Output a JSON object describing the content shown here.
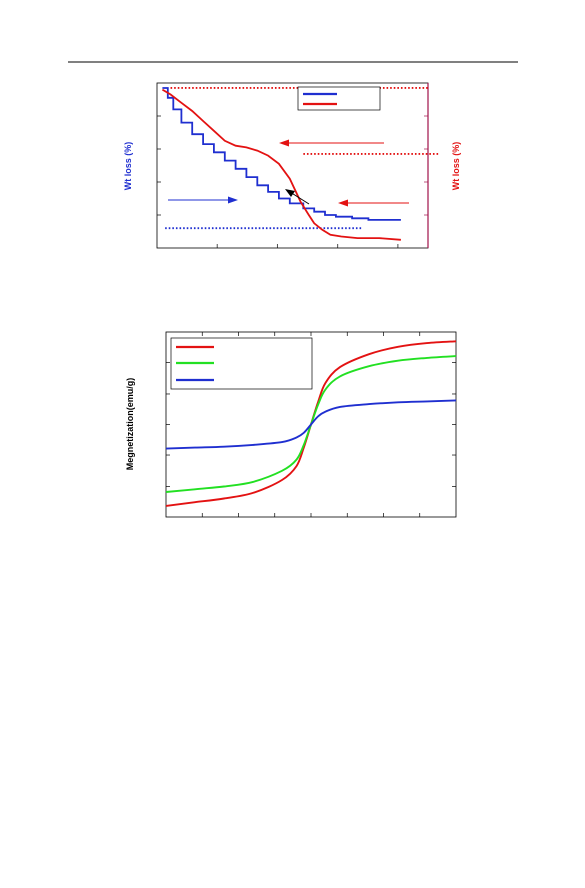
{
  "colors": {
    "blue": "#1f2fd0",
    "red": "#e31212",
    "green": "#22e022",
    "maroon": "#a0124a",
    "black": "#000000"
  },
  "chart_data": [
    {
      "type": "line",
      "title": "",
      "ylabel_left": "Wt loss (%)",
      "ylabel_right": "Wt loss (%)",
      "xlim": [
        0,
        1
      ],
      "ylim": [
        0,
        1
      ],
      "grid": false,
      "legend_position": "top-right",
      "series": [
        {
          "color": "blue",
          "x": [
            0.02,
            0.04,
            0.06,
            0.09,
            0.13,
            0.17,
            0.21,
            0.25,
            0.29,
            0.33,
            0.37,
            0.41,
            0.45,
            0.49,
            0.54,
            0.58,
            0.62,
            0.66,
            0.72,
            0.78,
            0.85,
            0.9
          ],
          "y": [
            0.03,
            0.09,
            0.16,
            0.24,
            0.31,
            0.37,
            0.42,
            0.47,
            0.52,
            0.57,
            0.62,
            0.66,
            0.7,
            0.73,
            0.76,
            0.78,
            0.8,
            0.81,
            0.82,
            0.83,
            0.83,
            0.83
          ]
        },
        {
          "color": "red",
          "x": [
            0.02,
            0.05,
            0.09,
            0.13,
            0.17,
            0.21,
            0.25,
            0.29,
            0.33,
            0.37,
            0.41,
            0.45,
            0.49,
            0.53,
            0.56,
            0.58,
            0.61,
            0.64,
            0.68,
            0.74,
            0.82,
            0.9
          ],
          "y": [
            0.04,
            0.07,
            0.12,
            0.17,
            0.23,
            0.29,
            0.35,
            0.38,
            0.39,
            0.41,
            0.44,
            0.49,
            0.58,
            0.72,
            0.8,
            0.85,
            0.89,
            0.92,
            0.93,
            0.94,
            0.94,
            0.95
          ]
        }
      ],
      "reference_lines": [
        {
          "color": "red",
          "y": 0.03,
          "x": [
            0.05,
            1.0
          ]
        },
        {
          "color": "red",
          "y": 0.43,
          "x": [
            0.54,
            1.04
          ]
        },
        {
          "color": "blue",
          "y": 0.88,
          "x": [
            0.03,
            0.76
          ]
        }
      ]
    },
    {
      "type": "line",
      "title": "",
      "ylabel": "Megnetization(emu/g)",
      "xlim": [
        -1,
        1
      ],
      "ylim": [
        -1,
        1
      ],
      "grid": false,
      "legend_position": "top-left",
      "series": [
        {
          "color": "red",
          "x": [
            -1,
            -0.8,
            -0.6,
            -0.4,
            -0.2,
            -0.1,
            -0.05,
            0,
            0.05,
            0.1,
            0.2,
            0.4,
            0.6,
            0.8,
            1
          ],
          "y": [
            -0.88,
            -0.84,
            -0.8,
            -0.74,
            -0.6,
            -0.45,
            -0.25,
            0,
            0.25,
            0.45,
            0.62,
            0.76,
            0.84,
            0.88,
            0.9
          ]
        },
        {
          "color": "green",
          "x": [
            -1,
            -0.8,
            -0.6,
            -0.4,
            -0.2,
            -0.1,
            -0.05,
            0,
            0.05,
            0.1,
            0.2,
            0.4,
            0.6,
            0.8,
            1
          ],
          "y": [
            -0.73,
            -0.7,
            -0.67,
            -0.62,
            -0.5,
            -0.38,
            -0.22,
            0,
            0.22,
            0.38,
            0.52,
            0.63,
            0.69,
            0.72,
            0.74
          ]
        },
        {
          "color": "blue",
          "x": [
            -1,
            -0.8,
            -0.6,
            -0.4,
            -0.2,
            -0.1,
            -0.05,
            0,
            0.05,
            0.1,
            0.2,
            0.4,
            0.6,
            0.8,
            1
          ],
          "y": [
            -0.26,
            -0.25,
            -0.24,
            -0.22,
            -0.19,
            -0.14,
            -0.09,
            0,
            0.09,
            0.14,
            0.19,
            0.22,
            0.24,
            0.25,
            0.26
          ]
        }
      ]
    }
  ]
}
